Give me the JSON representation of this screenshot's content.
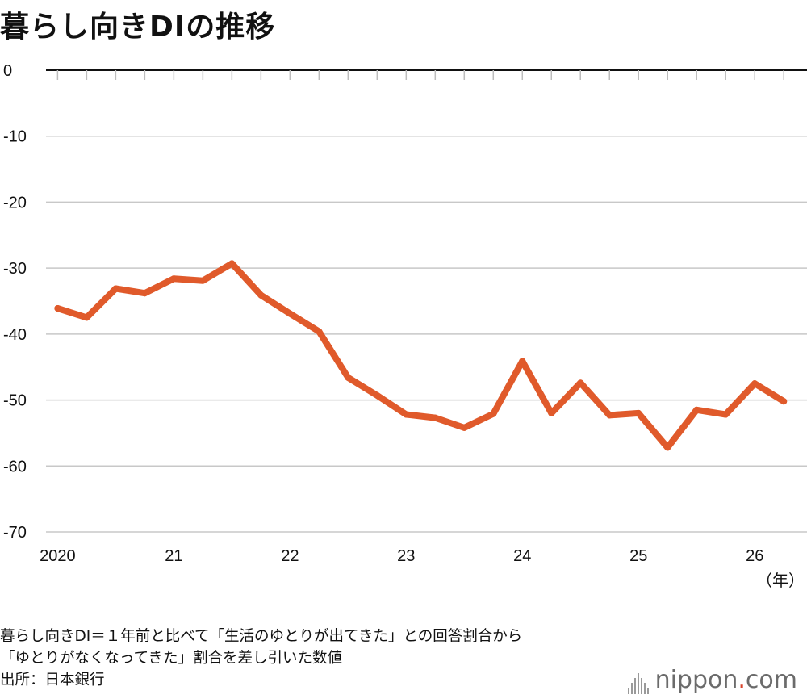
{
  "title": "暮らし向きDIの推移",
  "notes": [
    "暮らし向きDI＝１年前と比べて「生活のゆとりが出てきた」との回答割合から",
    "「ゆとりがなくなってきた」割合を差し引いた数値",
    "出所：日本銀行"
  ],
  "logo": {
    "name": "nippon",
    "dot": ".",
    "tld": "com"
  },
  "chart_data": {
    "type": "line",
    "title": "暮らし向きDIの推移",
    "xlabel": "（年）",
    "ylabel": "",
    "ylim": [
      -70,
      0
    ],
    "yticks": [
      "0",
      "-10",
      "-20",
      "-30",
      "-40",
      "-50",
      "-60",
      "-70"
    ],
    "xticks": [
      {
        "label": "2020",
        "x": 2020.0
      },
      {
        "label": "21",
        "x": 2021.0
      },
      {
        "label": "22",
        "x": 2022.0
      },
      {
        "label": "23",
        "x": 2023.0
      },
      {
        "label": "24",
        "x": 2024.0
      },
      {
        "label": "25",
        "x": 2025.0
      },
      {
        "label": "26",
        "x": 2026.0
      }
    ],
    "grid": true,
    "color": "#e05a2b",
    "series": [
      {
        "x": [
          2020.0,
          2020.25,
          2020.5,
          2020.75,
          2021.0,
          2021.25,
          2021.5,
          2021.75,
          2022.0,
          2022.25,
          2022.5,
          2022.75,
          2023.0,
          2023.25,
          2023.5,
          2023.75,
          2024.0,
          2024.25,
          2024.5,
          2024.75,
          2025.0,
          2025.25,
          2025.5,
          2025.75,
          2026.0,
          2026.25
        ],
        "values": [
          -36.1,
          -37.5,
          -33.1,
          -33.8,
          -31.6,
          -31.9,
          -29.3,
          -34.1,
          -36.9,
          -39.6,
          -46.6,
          -49.3,
          -52.2,
          -52.7,
          -54.2,
          -52.1,
          -44.1,
          -52.0,
          -47.4,
          -52.3,
          -52.0,
          -57.2,
          -51.5,
          -52.2,
          -47.5,
          -50.2
        ]
      }
    ]
  }
}
